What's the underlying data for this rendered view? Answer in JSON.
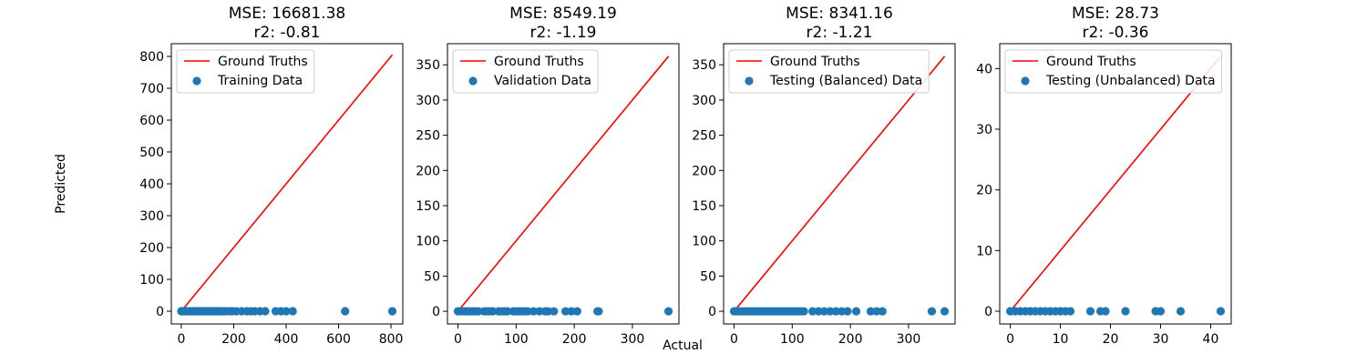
{
  "figure": {
    "ylabel": "Predicted",
    "xlabel": "Actual"
  },
  "colors": {
    "ground_truth": "#ff0000",
    "scatter": "#1f77b4"
  },
  "chart_data": [
    {
      "type": "scatter",
      "title_lines": [
        "MSE: 16681.38",
        "r2: -0.81"
      ],
      "xlim": [
        -38,
        845
      ],
      "ylim": [
        -40,
        840
      ],
      "xticks": [
        0,
        200,
        400,
        600,
        800
      ],
      "yticks": [
        0,
        100,
        200,
        300,
        400,
        500,
        600,
        700,
        800
      ],
      "ground_truth": {
        "name": "Ground Truths",
        "x": [
          0,
          805
        ],
        "y": [
          0,
          805
        ]
      },
      "series": [
        {
          "name": "Training Data",
          "x": [
            0,
            3,
            6,
            10,
            15,
            20,
            25,
            30,
            35,
            40,
            45,
            50,
            55,
            60,
            65,
            70,
            75,
            80,
            85,
            90,
            95,
            100,
            105,
            110,
            115,
            120,
            125,
            130,
            135,
            140,
            145,
            150,
            160,
            170,
            185,
            195,
            210,
            230,
            250,
            265,
            280,
            300,
            320,
            360,
            380,
            400,
            425,
            625,
            805
          ],
          "y": [
            0,
            0,
            0,
            0,
            0,
            0,
            0,
            0,
            0,
            0,
            0,
            0,
            0,
            0,
            0,
            0,
            0,
            0,
            0,
            0,
            0,
            0,
            0,
            0,
            0,
            0,
            0,
            0,
            0,
            0,
            0,
            0,
            0,
            0,
            0,
            0,
            0,
            0,
            0,
            0,
            0,
            0,
            0,
            0,
            0,
            0,
            0,
            0,
            0
          ]
        }
      ]
    },
    {
      "type": "scatter",
      "title_lines": [
        "MSE: 8549.19",
        "r2: -1.19"
      ],
      "xlim": [
        -18,
        380
      ],
      "ylim": [
        -18,
        380
      ],
      "xticks": [
        0,
        100,
        200,
        300
      ],
      "yticks": [
        0,
        50,
        100,
        150,
        200,
        250,
        300,
        350
      ],
      "ground_truth": {
        "name": "Ground Truths",
        "x": [
          0,
          362
        ],
        "y": [
          0,
          362
        ]
      },
      "series": [
        {
          "name": "Validation Data",
          "x": [
            0,
            5,
            10,
            15,
            20,
            25,
            30,
            35,
            45,
            50,
            55,
            60,
            70,
            75,
            80,
            85,
            95,
            100,
            105,
            110,
            115,
            120,
            130,
            140,
            150,
            155,
            165,
            185,
            195,
            205,
            240,
            242,
            362
          ],
          "y": [
            0,
            0,
            0,
            0,
            0,
            0,
            0,
            0,
            0,
            0,
            0,
            0,
            0,
            0,
            0,
            0,
            0,
            0,
            0,
            0,
            0,
            0,
            0,
            0,
            0,
            0,
            0,
            0,
            0,
            0,
            0,
            0,
            0
          ]
        }
      ]
    },
    {
      "type": "scatter",
      "title_lines": [
        "MSE: 8341.16",
        "r2: -1.21"
      ],
      "xlim": [
        -18,
        380
      ],
      "ylim": [
        -18,
        380
      ],
      "xticks": [
        0,
        100,
        200,
        300
      ],
      "yticks": [
        0,
        50,
        100,
        150,
        200,
        250,
        300,
        350
      ],
      "ground_truth": {
        "name": "Ground Truths",
        "x": [
          0,
          362
        ],
        "y": [
          0,
          362
        ]
      },
      "series": [
        {
          "name": "Testing (Balanced) Data",
          "x": [
            0,
            3,
            6,
            10,
            15,
            20,
            25,
            30,
            35,
            40,
            45,
            50,
            55,
            60,
            65,
            70,
            75,
            80,
            85,
            90,
            95,
            100,
            105,
            110,
            115,
            120,
            135,
            145,
            155,
            165,
            175,
            185,
            195,
            210,
            235,
            245,
            255,
            340,
            362
          ],
          "y": [
            0,
            0,
            0,
            0,
            0,
            0,
            0,
            0,
            0,
            0,
            0,
            0,
            0,
            0,
            0,
            0,
            0,
            0,
            0,
            0,
            0,
            0,
            0,
            0,
            0,
            0,
            0,
            0,
            0,
            0,
            0,
            0,
            0,
            0,
            0,
            0,
            0,
            0,
            0
          ]
        }
      ]
    },
    {
      "type": "scatter",
      "title_lines": [
        "MSE: 28.73",
        "r2: -0.36"
      ],
      "xlim": [
        -2.1,
        44.1
      ],
      "ylim": [
        -2.1,
        44.1
      ],
      "xticks": [
        0,
        10,
        20,
        30,
        40
      ],
      "yticks": [
        0,
        10,
        20,
        30,
        40
      ],
      "ground_truth": {
        "name": "Ground Truths",
        "x": [
          0,
          42
        ],
        "y": [
          0,
          42
        ]
      },
      "series": [
        {
          "name": "Testing (Unbalanced) Data",
          "x": [
            0,
            1,
            2,
            3,
            4,
            5,
            6,
            7,
            8,
            9,
            10,
            11,
            12,
            16,
            18,
            19,
            23,
            29,
            30,
            34,
            42
          ],
          "y": [
            0,
            0,
            0,
            0,
            0,
            0,
            0,
            0,
            0,
            0,
            0,
            0,
            0,
            0,
            0,
            0,
            0,
            0,
            0,
            0,
            0
          ]
        }
      ]
    }
  ]
}
